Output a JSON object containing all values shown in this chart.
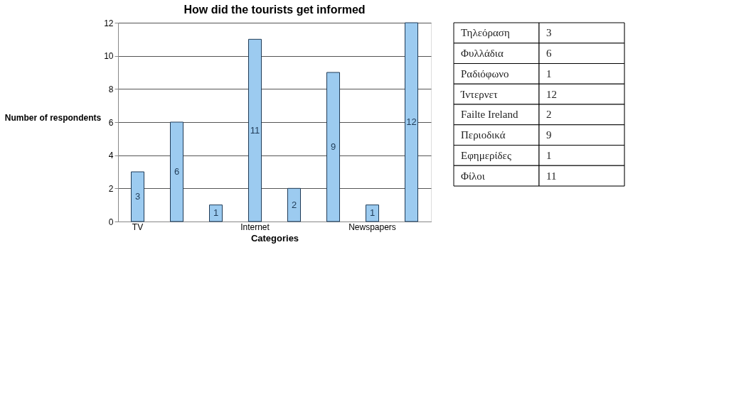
{
  "chart_data": [
    {
      "type": "bar",
      "title": "How did the tourists get informed",
      "xlabel": "Categories",
      "ylabel": "Number of respondents",
      "categories": [
        "TV",
        null,
        null,
        "Internet",
        null,
        null,
        "Newspapers",
        null
      ],
      "values": [
        3,
        6,
        1,
        11,
        2,
        9,
        1,
        12
      ],
      "color": "#9ccbf0",
      "ylim": [
        0,
        12
      ],
      "yticks": [
        0,
        2,
        4,
        6,
        8,
        10,
        12
      ],
      "grid": "y",
      "data_labels": true
    },
    {
      "type": "other",
      "categories": [
        "Τηλεόραση",
        "Φυλλάδια",
        "Ραδιόφωνο",
        "Ίντερνετ",
        "Failte Ireland",
        "Περιοδικά",
        "Εφημερίδες",
        "Φίλοι"
      ],
      "values": [
        3,
        6,
        1,
        12,
        2,
        9,
        1,
        11
      ],
      "data_labels": true
    }
  ]
}
